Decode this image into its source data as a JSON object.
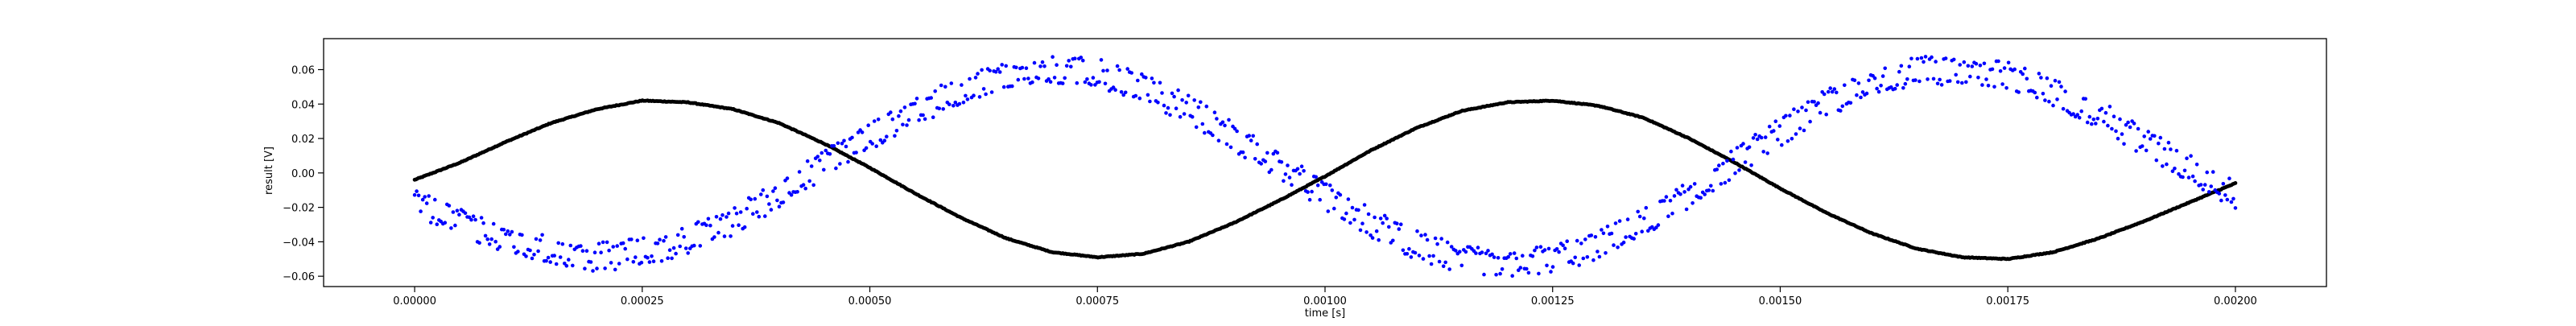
{
  "chart_data": {
    "type": "scatter",
    "title": "",
    "xlabel": "time [s]",
    "ylabel": "result [V]",
    "xlim": [
      -0.0001,
      0.0021
    ],
    "ylim": [
      -0.066,
      0.078
    ],
    "grid": false,
    "x_ticks": [
      0.0,
      0.00025,
      0.0005,
      0.00075,
      0.001,
      0.00125,
      0.0015,
      0.00175,
      0.002
    ],
    "x_tick_labels": [
      "0.00000",
      "0.00025",
      "0.00050",
      "0.00075",
      "0.00100",
      "0.00125",
      "0.00150",
      "0.00175",
      "0.00200"
    ],
    "y_ticks": [
      -0.06,
      -0.04,
      -0.02,
      0.0,
      0.02,
      0.04,
      0.06
    ],
    "y_tick_labels": [
      "−0.06",
      "−0.04",
      "−0.02",
      "0.00",
      "0.02",
      "0.04",
      "0.06"
    ],
    "series": [
      {
        "color": "#000000",
        "marker": "dot",
        "points": [
          [
            0.0,
            -0.004
          ],
          [
            5e-05,
            0.006
          ],
          [
            0.0001,
            0.018
          ],
          [
            0.00015,
            0.029
          ],
          [
            0.0002,
            0.037
          ],
          [
            0.00025,
            0.042
          ],
          [
            0.0003,
            0.041
          ],
          [
            0.00035,
            0.037
          ],
          [
            0.0004,
            0.029
          ],
          [
            0.00045,
            0.017
          ],
          [
            0.0005,
            0.003
          ],
          [
            0.00055,
            -0.012
          ],
          [
            0.0006,
            -0.026
          ],
          [
            0.00065,
            -0.038
          ],
          [
            0.0007,
            -0.046
          ],
          [
            0.00075,
            -0.049
          ],
          [
            0.0008,
            -0.047
          ],
          [
            0.00085,
            -0.04
          ],
          [
            0.0009,
            -0.029
          ],
          [
            0.00095,
            -0.016
          ],
          [
            0.001,
            -0.002
          ],
          [
            0.00105,
            0.013
          ],
          [
            0.0011,
            0.026
          ],
          [
            0.00115,
            0.036
          ],
          [
            0.0012,
            0.041
          ],
          [
            0.00125,
            0.042
          ],
          [
            0.0013,
            0.039
          ],
          [
            0.00135,
            0.032
          ],
          [
            0.0014,
            0.02
          ],
          [
            0.00145,
            0.006
          ],
          [
            0.0015,
            -0.009
          ],
          [
            0.00155,
            -0.023
          ],
          [
            0.0016,
            -0.035
          ],
          [
            0.00165,
            -0.044
          ],
          [
            0.0017,
            -0.049
          ],
          [
            0.00175,
            -0.05
          ],
          [
            0.0018,
            -0.046
          ],
          [
            0.00185,
            -0.038
          ],
          [
            0.0019,
            -0.028
          ],
          [
            0.00195,
            -0.017
          ],
          [
            0.002,
            -0.006
          ]
        ]
      },
      {
        "color": "#0000ff",
        "marker": "dot",
        "points": [
          [
            0.0,
            -0.017
          ],
          [
            5e-05,
            -0.029
          ],
          [
            0.0001,
            -0.038
          ],
          [
            0.00015,
            -0.045
          ],
          [
            0.0002,
            -0.049
          ],
          [
            0.00025,
            -0.046
          ],
          [
            0.0003,
            -0.039
          ],
          [
            0.00035,
            -0.028
          ],
          [
            0.0004,
            -0.012
          ],
          [
            0.00045,
            0.005
          ],
          [
            0.0005,
            0.021
          ],
          [
            0.00055,
            0.036
          ],
          [
            0.0006,
            0.048
          ],
          [
            0.00065,
            0.056
          ],
          [
            0.0007,
            0.06
          ],
          [
            0.00075,
            0.058
          ],
          [
            0.0008,
            0.049
          ],
          [
            0.00085,
            0.037
          ],
          [
            0.0009,
            0.021
          ],
          [
            0.00095,
            0.004
          ],
          [
            0.001,
            -0.013
          ],
          [
            0.00105,
            -0.029
          ],
          [
            0.0011,
            -0.042
          ],
          [
            0.00115,
            -0.05
          ],
          [
            0.0012,
            -0.053
          ],
          [
            0.00125,
            -0.05
          ],
          [
            0.0013,
            -0.042
          ],
          [
            0.00135,
            -0.029
          ],
          [
            0.0014,
            -0.012
          ],
          [
            0.00145,
            0.006
          ],
          [
            0.0015,
            0.024
          ],
          [
            0.00155,
            0.04
          ],
          [
            0.0016,
            0.052
          ],
          [
            0.00165,
            0.059
          ],
          [
            0.0017,
            0.06
          ],
          [
            0.00175,
            0.056
          ],
          [
            0.0018,
            0.047
          ],
          [
            0.00185,
            0.034
          ],
          [
            0.0019,
            0.018
          ],
          [
            0.00195,
            0.003
          ],
          [
            0.002,
            -0.013
          ]
        ]
      }
    ]
  }
}
